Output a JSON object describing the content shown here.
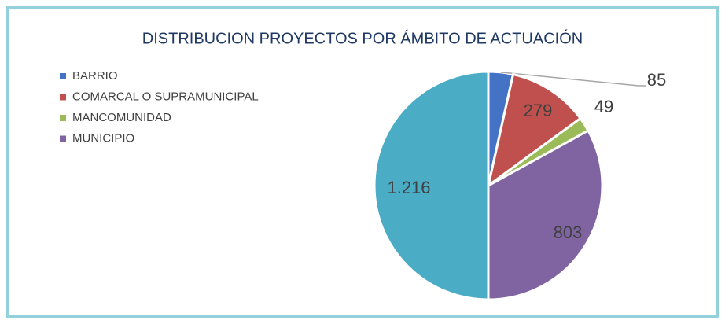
{
  "chart_data": {
    "type": "pie",
    "title": "DISTRIBUCION PROYECTOS POR ÁMBITO DE ACTUACIÓN",
    "categories": [
      "BARRIO",
      "COMARCAL O SUPRAMUNICIPAL",
      "MANCOMUNIDAD",
      "MUNICIPIO",
      null
    ],
    "values": [
      85,
      279,
      49,
      803,
      1216
    ],
    "value_labels": [
      "85",
      "279",
      "49",
      "803",
      "1.216"
    ],
    "colors": [
      "#4472c4",
      "#c0504d",
      "#9bbb59",
      "#8064a2",
      "#4bacc6"
    ],
    "legend": "left"
  }
}
